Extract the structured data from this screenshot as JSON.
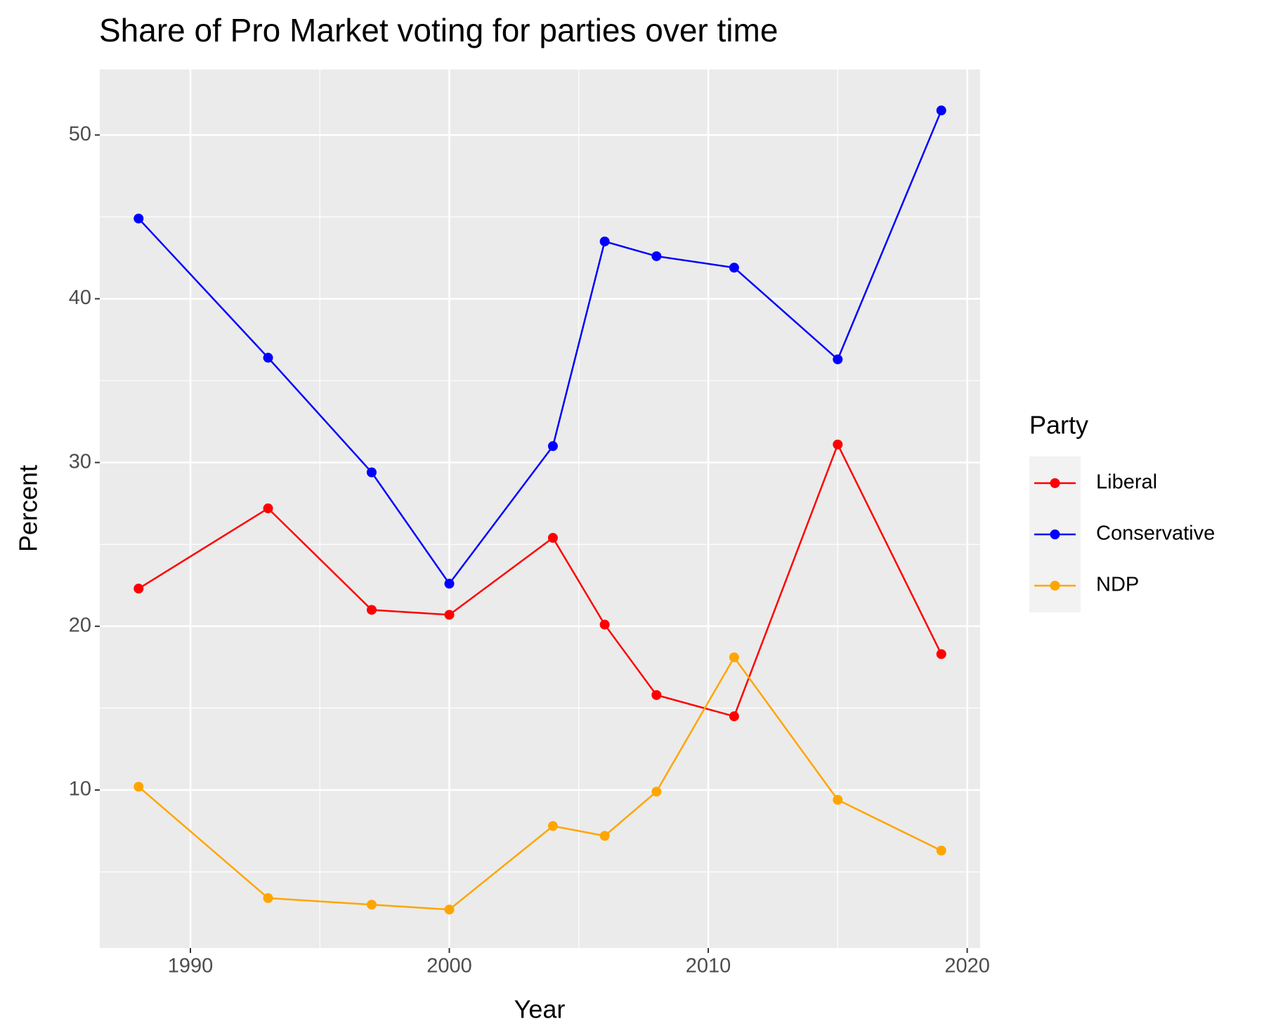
{
  "chart_data": {
    "type": "line",
    "title": "Share of Pro Market voting for parties over time",
    "x_label": "Year",
    "y_label": "Percent",
    "legend_title": "Party",
    "legend_position": "right",
    "x": [
      1988,
      1993,
      1997,
      2000,
      2004,
      2006,
      2008,
      2011,
      2015,
      2019
    ],
    "series": [
      {
        "name": "Liberal",
        "color": "#FF0000",
        "values": [
          22.3,
          27.2,
          21.0,
          20.7,
          25.4,
          20.1,
          15.8,
          14.5,
          31.1,
          18.3
        ]
      },
      {
        "name": "Conservative",
        "color": "#0000FF",
        "values": [
          44.9,
          36.4,
          29.4,
          22.6,
          31.0,
          43.5,
          42.6,
          41.9,
          36.3,
          51.5
        ]
      },
      {
        "name": "NDP",
        "color": "#FFA500",
        "values": [
          10.2,
          3.4,
          3.0,
          2.7,
          7.8,
          7.2,
          9.9,
          18.1,
          9.4,
          6.3
        ]
      }
    ],
    "xlim": [
      1986.5,
      2020.5
    ],
    "xticks": [
      1990,
      2000,
      2010,
      2020
    ],
    "ylim": [
      0.35,
      54.0
    ],
    "yticks": [
      10,
      20,
      30,
      40,
      50
    ],
    "grid": true
  }
}
